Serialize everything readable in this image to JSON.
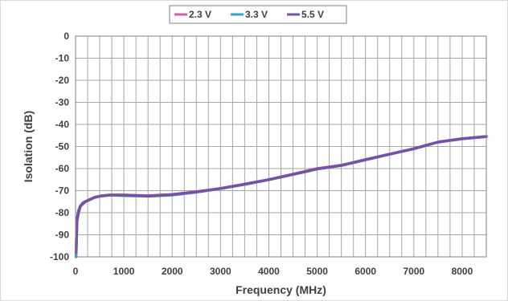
{
  "chart_data": {
    "type": "line",
    "title": "",
    "xlabel": "Frequency (MHz)",
    "ylabel": "Isolation (dB)",
    "xlim": [
      0,
      8500
    ],
    "ylim": [
      -100,
      0
    ],
    "x_ticks": [
      "0",
      "1000",
      "2000",
      "3000",
      "4000",
      "5000",
      "6000",
      "7000",
      "8000"
    ],
    "y_ticks": [
      "0",
      "-10",
      "-20",
      "-30",
      "-40",
      "-50",
      "-60",
      "-70",
      "-80",
      "-90",
      "-100"
    ],
    "grid": true,
    "legend_position": "top",
    "series": [
      {
        "name": "2.3 V",
        "color": "#d45ea5",
        "x": [
          10,
          30,
          60,
          100,
          150,
          200,
          300,
          400,
          500,
          700,
          1000,
          1500,
          2000,
          2500,
          3000,
          3500,
          4000,
          4500,
          5000,
          5500,
          6000,
          6500,
          7000,
          7500,
          8000,
          8500
        ],
        "y": [
          -99,
          -84,
          -80,
          -77,
          -76,
          -75,
          -74,
          -73,
          -72.5,
          -72,
          -72,
          -72.3,
          -71.8,
          -70.5,
          -69,
          -67,
          -65,
          -62.5,
          -60,
          -58.5,
          -56,
          -53.5,
          -51,
          -48,
          -46.5,
          -45.5
        ]
      },
      {
        "name": "3.3 V",
        "color": "#29a8d6",
        "x": [
          10,
          30,
          60,
          100,
          150,
          200,
          300,
          400,
          500,
          700,
          1000,
          1500,
          2000,
          2500,
          3000,
          3500,
          4000,
          4500,
          5000,
          5500,
          6000,
          6500,
          7000,
          7500,
          8000,
          8500
        ],
        "y": [
          -100,
          -83,
          -79,
          -77,
          -75.5,
          -75,
          -74,
          -73,
          -72.5,
          -72,
          -72.3,
          -72.5,
          -72,
          -70.7,
          -69,
          -67.2,
          -65,
          -62.7,
          -60.2,
          -58.5,
          -56,
          -53.5,
          -51,
          -48,
          -46.5,
          -45.5
        ]
      },
      {
        "name": "5.5 V",
        "color": "#7b4fa8",
        "x": [
          10,
          30,
          60,
          100,
          150,
          200,
          300,
          400,
          500,
          700,
          1000,
          1500,
          2000,
          2500,
          3000,
          3500,
          4000,
          4500,
          5000,
          5500,
          6000,
          6500,
          7000,
          7500,
          8000,
          8500
        ],
        "y": [
          -98,
          -83,
          -80,
          -77,
          -76,
          -75,
          -74,
          -73,
          -72.5,
          -72,
          -72,
          -72.5,
          -71.8,
          -70.6,
          -69,
          -67.1,
          -65,
          -62.6,
          -60.1,
          -58.6,
          -56,
          -53.5,
          -51,
          -48,
          -46.5,
          -45.5
        ]
      }
    ]
  }
}
